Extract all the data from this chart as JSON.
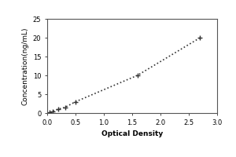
{
  "x_data": [
    0.047,
    0.094,
    0.188,
    0.313,
    0.5,
    1.594,
    2.7
  ],
  "y_data": [
    0.15,
    0.4,
    1.0,
    1.5,
    3.0,
    10.0,
    20.0
  ],
  "xlabel": "Optical Density",
  "ylabel": "Concentration(ng/mL)",
  "xlim": [
    0,
    3
  ],
  "ylim": [
    0,
    25
  ],
  "xticks": [
    0,
    0.5,
    1,
    1.5,
    2,
    2.5,
    3
  ],
  "yticks": [
    0,
    5,
    10,
    15,
    20,
    25
  ],
  "line_color": "#333333",
  "marker_color": "#333333",
  "marker": "+",
  "markersize": 5,
  "linestyle": ":",
  "linewidth": 1.2,
  "bg_color": "#ffffff",
  "label_fontsize": 6.5,
  "tick_fontsize": 6
}
